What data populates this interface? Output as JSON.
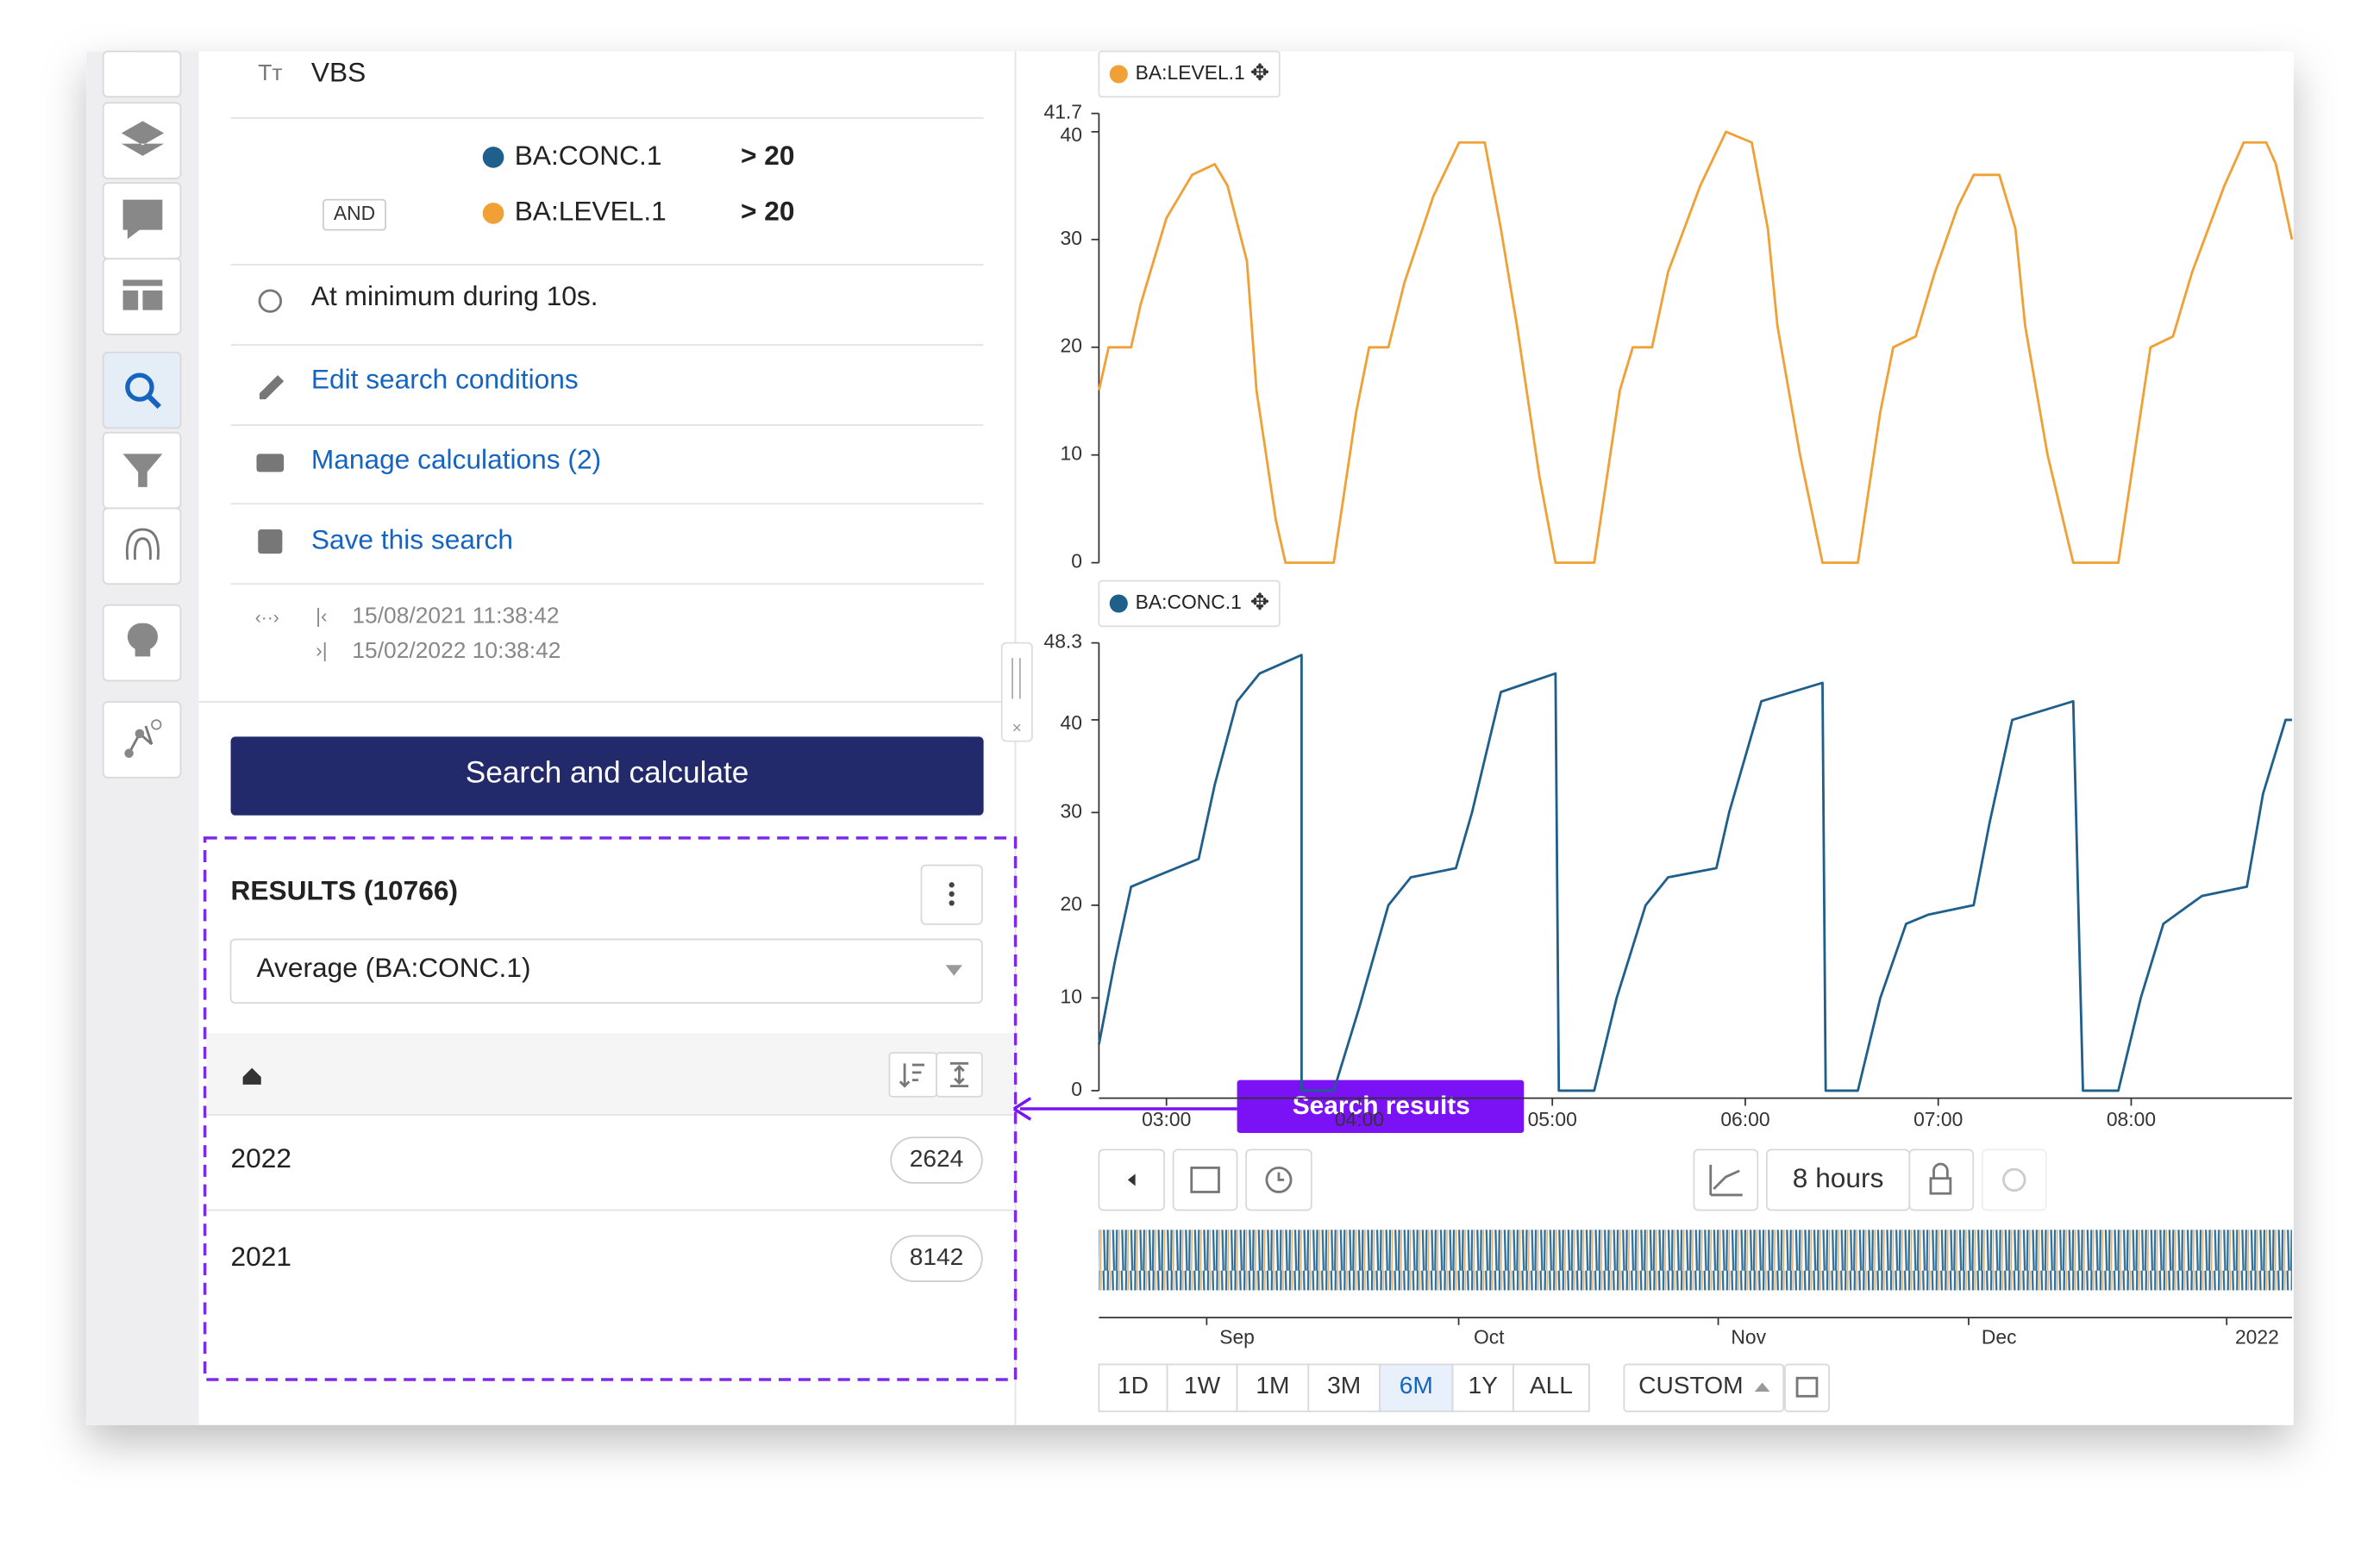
{
  "search": {
    "name": "VBS",
    "conditions": [
      {
        "signal": "BA:CONC.1",
        "threshold": "> 20"
      },
      {
        "connector": "AND",
        "signal": "BA:LEVEL.1",
        "threshold": "> 20"
      }
    ],
    "duration": "At minimum during 10s.",
    "actions": [
      "Edit search conditions",
      "Manage calculations (2)",
      "Save this search"
    ],
    "range": {
      "start": "15/08/2021 11:38:42",
      "end": "15/02/2022 10:38:42"
    },
    "button": "Search and calculate"
  },
  "results": {
    "title": "RESULTS (10766)",
    "aggregate": "Average (BA:CONC.1)",
    "rows": [
      {
        "label": "2022",
        "count": 2624
      },
      {
        "label": "2021",
        "count": 8142
      }
    ]
  },
  "annotation": "Search results",
  "chart_data": [
    {
      "type": "line",
      "xlim": [
        159,
        530
      ],
      "ylim": [
        0,
        41.7
      ],
      "yticks": [
        0,
        10,
        20,
        30,
        40
      ],
      "x": [
        159,
        162,
        169,
        172,
        180,
        188,
        195,
        199,
        205,
        208,
        214,
        217,
        232,
        239,
        243,
        249,
        254,
        263,
        271,
        279,
        284,
        289,
        296,
        301,
        313,
        321,
        325,
        331,
        336,
        346,
        354,
        362,
        367,
        370,
        377,
        384,
        395,
        402,
        406,
        413,
        419,
        426,
        431,
        439,
        444,
        447,
        454,
        462,
        476,
        483,
        486,
        493,
        499,
        509,
        515,
        522,
        525,
        530
      ],
      "series": [
        {
          "name": "BA:LEVEL.1",
          "color": "#f0a035",
          "values": [
            16,
            20,
            20,
            24,
            32,
            36,
            37,
            35,
            28,
            16,
            4,
            0,
            0,
            14,
            20,
            20,
            26,
            34,
            39,
            39,
            31,
            22,
            8,
            0,
            0,
            16,
            20,
            20,
            27,
            35,
            40,
            39,
            31,
            22,
            10,
            0,
            0,
            14,
            20,
            21,
            27,
            33,
            36,
            36,
            31,
            22,
            10,
            0,
            0,
            14,
            20,
            21,
            27,
            35,
            39,
            39,
            37,
            30
          ]
        }
      ]
    },
    {
      "type": "line",
      "xlim": [
        159,
        530
      ],
      "ylim": [
        0,
        48.3
      ],
      "yticks": [
        0,
        10,
        20,
        30,
        40
      ],
      "xticks": [
        {
          "value": 180,
          "label": "03:00"
        },
        {
          "value": 240,
          "label": "04:00"
        },
        {
          "value": 300,
          "label": "05:00"
        },
        {
          "value": 360,
          "label": "06:00"
        },
        {
          "value": 420,
          "label": "07:00"
        },
        {
          "value": 480,
          "label": "08:00"
        }
      ],
      "x": [
        159,
        164,
        169,
        176,
        190,
        195,
        202,
        209,
        222,
        222,
        232,
        240,
        249,
        256,
        270,
        275,
        284,
        301,
        302,
        313,
        320,
        329,
        336,
        351,
        355,
        365,
        384,
        385,
        395,
        402,
        410,
        417,
        431,
        436,
        443,
        462,
        465,
        476,
        483,
        490,
        502,
        516,
        521,
        528,
        530
      ],
      "series": [
        {
          "name": "BA:CONC.1",
          "color": "#1f5f8b",
          "values": [
            5,
            14,
            22,
            23,
            25,
            33,
            42,
            45,
            47,
            0,
            0,
            9,
            20,
            23,
            24,
            30,
            43,
            45,
            0,
            0,
            10,
            20,
            23,
            24,
            30,
            42,
            44,
            0,
            0,
            10,
            18,
            19,
            20,
            29,
            40,
            42,
            0,
            0,
            10,
            18,
            21,
            22,
            32,
            40,
            40
          ]
        }
      ]
    }
  ],
  "toolbar": {
    "window": "8 hours"
  },
  "navigator": {
    "labels": [
      "Sep",
      "Oct",
      "Nov",
      "Dec",
      "2022"
    ]
  },
  "ranges": [
    "1D",
    "1W",
    "1M",
    "3M",
    "6M",
    "1Y",
    "ALL"
  ],
  "active_range": "6M",
  "custom": "CUSTOM"
}
